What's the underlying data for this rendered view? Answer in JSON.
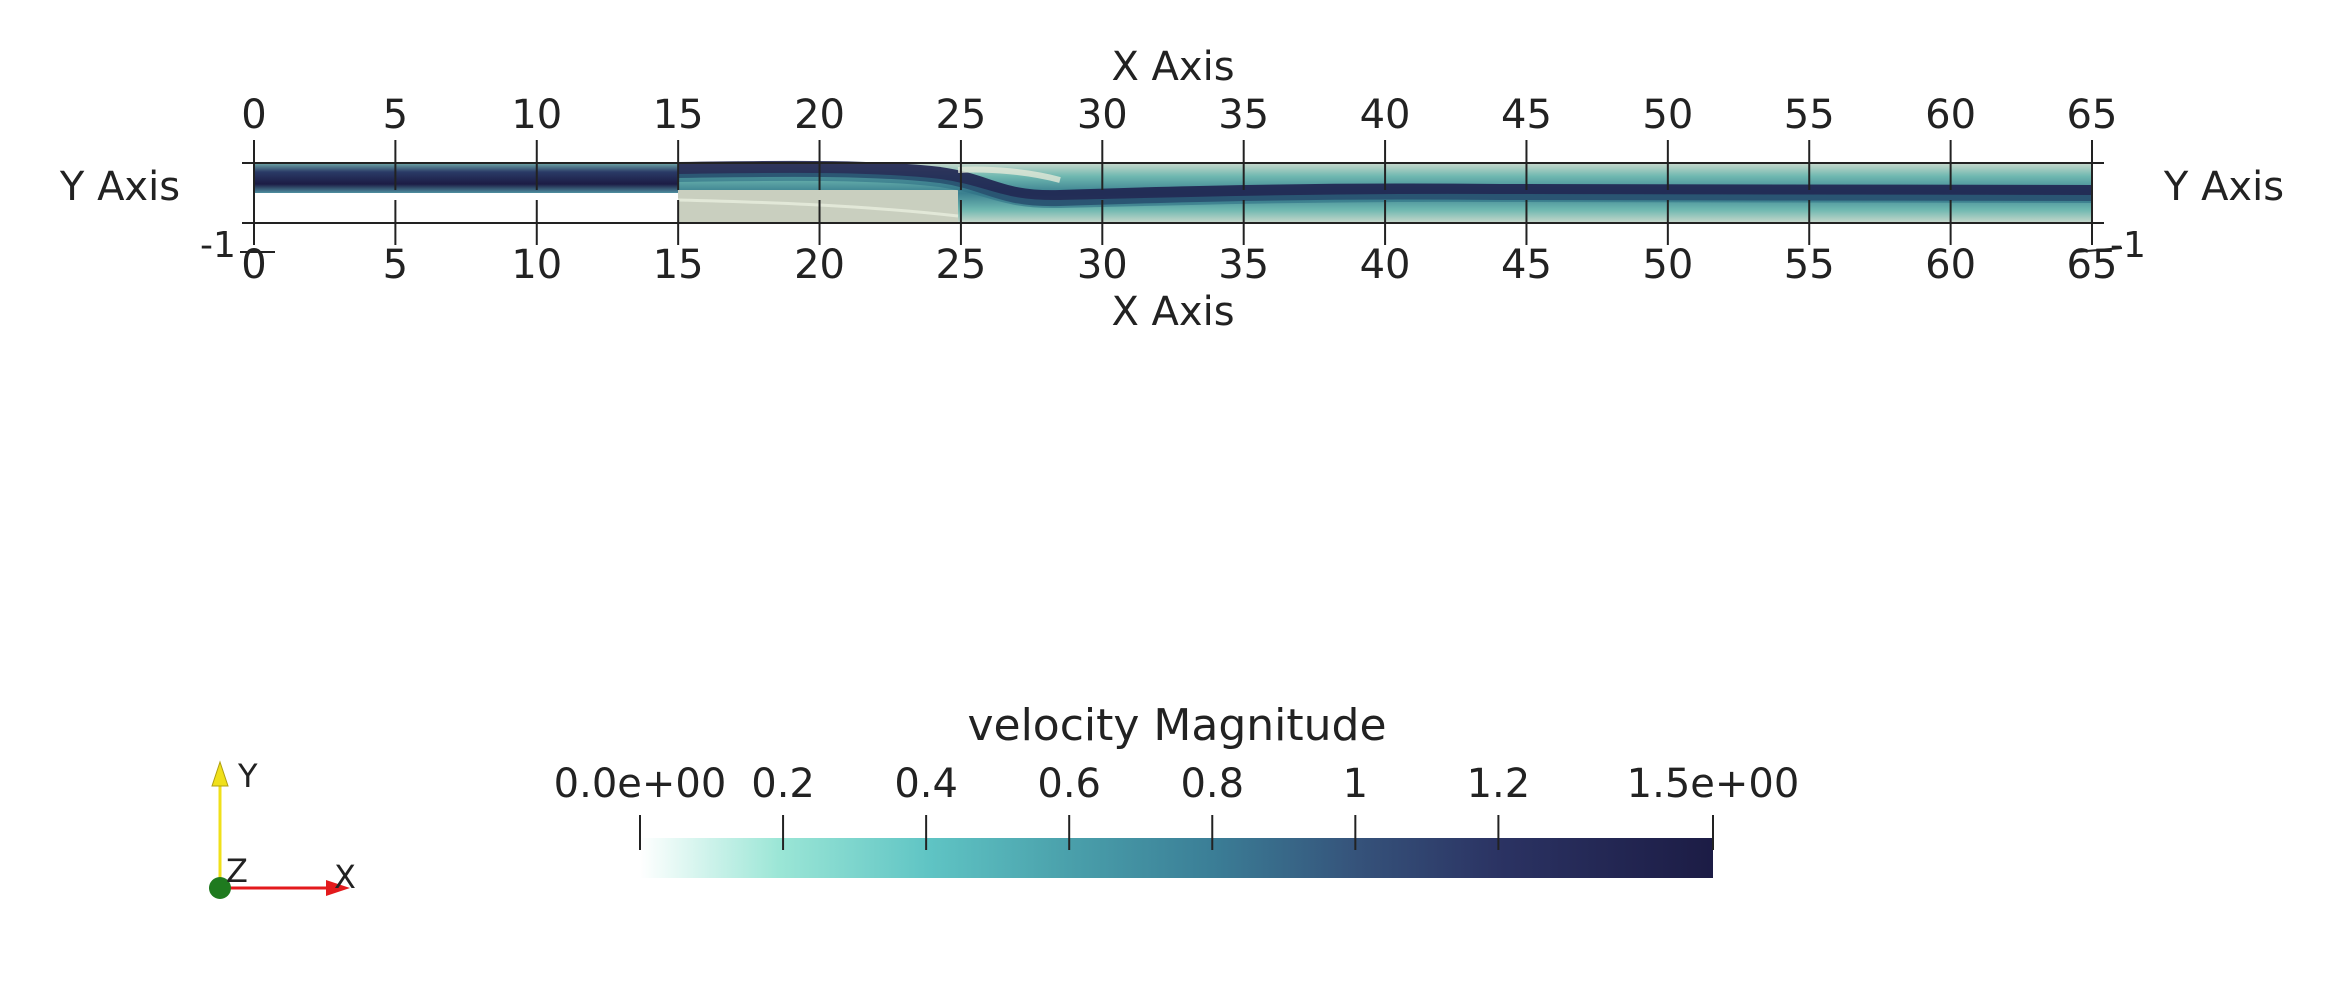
{
  "axes": {
    "x_title": "X Axis",
    "y_title": "Y Axis",
    "x_ticks": [
      "0",
      "5",
      "10",
      "15",
      "20",
      "25",
      "30",
      "35",
      "40",
      "45",
      "50",
      "55",
      "60",
      "65"
    ],
    "y_tick_left": "-1",
    "y_tick_right": "-1"
  },
  "colorbar": {
    "title": "velocity Magnitude",
    "tick_labels": [
      "0.0e+00",
      "0.2",
      "0.4",
      "0.6",
      "0.8",
      "1",
      "1.2",
      "1.5e+00"
    ],
    "tick_values": [
      0.0,
      0.2,
      0.4,
      0.6,
      0.8,
      1.0,
      1.2,
      1.5
    ],
    "range": [
      0.0,
      1.5
    ],
    "colors": [
      "#ffffff",
      "#9be6d6",
      "#5fc4c4",
      "#4aa0ab",
      "#3b7f97",
      "#35527a",
      "#2b3363",
      "#1c1c45"
    ]
  },
  "orientation_axes": {
    "x_label": "X",
    "y_label": "Y",
    "z_label": "Z",
    "x_color": "#e31a1c",
    "y_color": "#f0e01a",
    "z_color": "#1f7a1f"
  }
}
